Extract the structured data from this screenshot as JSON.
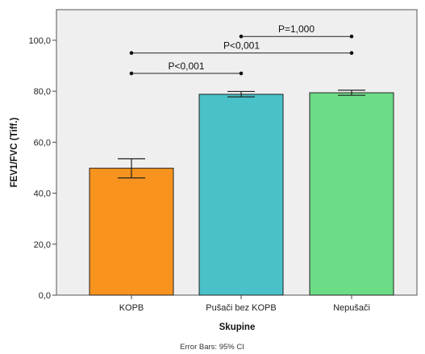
{
  "chart_data": {
    "type": "bar",
    "categories": [
      "KOPB",
      "Pušači bez KOPB",
      "Nepušači"
    ],
    "values": [
      49.8,
      78.8,
      79.4
    ],
    "error_bars": {
      "label": "Error Bars: 95% CI",
      "lower": [
        46.0,
        77.8,
        78.4
      ],
      "upper": [
        53.5,
        79.9,
        80.4
      ]
    },
    "bar_colors": [
      "#f7931e",
      "#48c1c8",
      "#6ddc86"
    ],
    "plot_background": "#efefef",
    "xlabel": "Skupine",
    "ylabel": "FEV1/FVC (Tiff.)",
    "ylim": [
      0,
      112
    ],
    "yticks": [
      "0,0",
      "20,0",
      "40,0",
      "60,0",
      "80,0",
      "100,0"
    ],
    "ytick_values": [
      0,
      20,
      40,
      60,
      80,
      100
    ],
    "grid": false,
    "significance": [
      {
        "from": 0,
        "to": 1,
        "label": "P<0,001",
        "level": 87
      },
      {
        "from": 0,
        "to": 2,
        "label": "P<0,001",
        "level": 95
      },
      {
        "from": 1,
        "to": 2,
        "label": "P=1,000",
        "level": 101.5
      }
    ]
  }
}
